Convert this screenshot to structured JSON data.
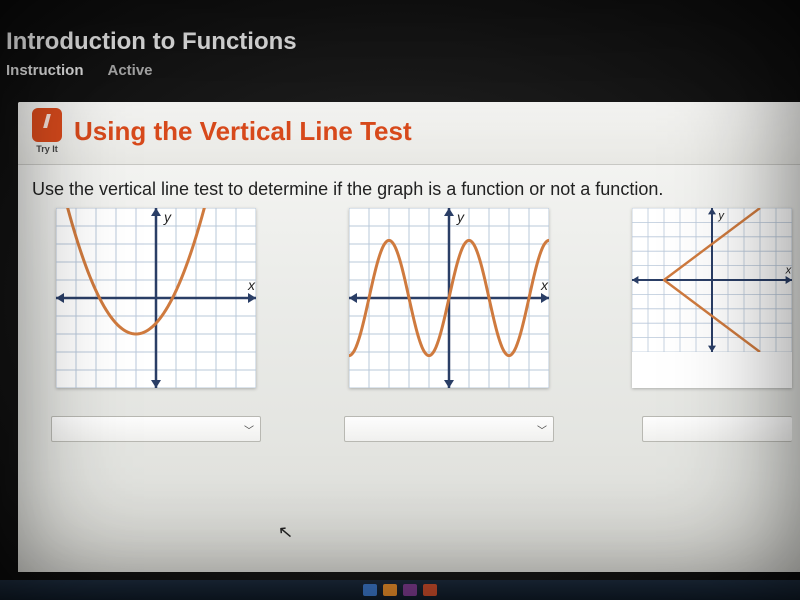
{
  "header": {
    "course_title": "Introduction to Functions",
    "nav_instruction": "Instruction",
    "nav_active": "Active"
  },
  "section": {
    "tryit_label": "Try It",
    "title": "Using the Vertical Line Test"
  },
  "prompt": "Use the vertical line test to determine if the graph is a function or not a function.",
  "graphs": [
    {
      "type": "parabola",
      "axis_label_x": "x",
      "axis_label_y": "y",
      "curve_color": "#cf7a3e",
      "axis_color": "#2a3e66",
      "grid_color": "#b9c8da",
      "background_color": "#ffffff",
      "xlim": [
        -5,
        5
      ],
      "ylim": [
        -5,
        5
      ],
      "vertex": [
        -1,
        -2
      ],
      "a": 0.6,
      "dropdown_value": ""
    },
    {
      "type": "sinusoid",
      "axis_label_x": "x",
      "axis_label_y": "y",
      "curve_color": "#cf7a3e",
      "axis_color": "#2a3e66",
      "grid_color": "#b9c8da",
      "background_color": "#ffffff",
      "xlim": [
        -5,
        5
      ],
      "ylim": [
        -5,
        5
      ],
      "amplitude": 3.2,
      "period": 4,
      "dropdown_value": ""
    },
    {
      "type": "sideways-vee",
      "axis_label_x": "x",
      "axis_label_y": "y",
      "curve_color": "#cf7a3e",
      "axis_color": "#2a3e66",
      "grid_color": "#b9c8da",
      "background_color": "#ffffff",
      "xlim": [
        -5,
        5
      ],
      "ylim": [
        -5,
        5
      ],
      "vertex_point": [
        -3,
        0
      ],
      "upper_end": [
        3,
        5
      ],
      "lower_end": [
        3,
        -5
      ],
      "dropdown_value": ""
    }
  ],
  "colors": {
    "accent": "#d84a1c",
    "dark_bg": "#1a1a1a",
    "board_bg": "#ebece8"
  },
  "taskbar_icons": [
    "#3a74c4",
    "#e28a2a",
    "#7a3a8a",
    "#c34a2a"
  ]
}
